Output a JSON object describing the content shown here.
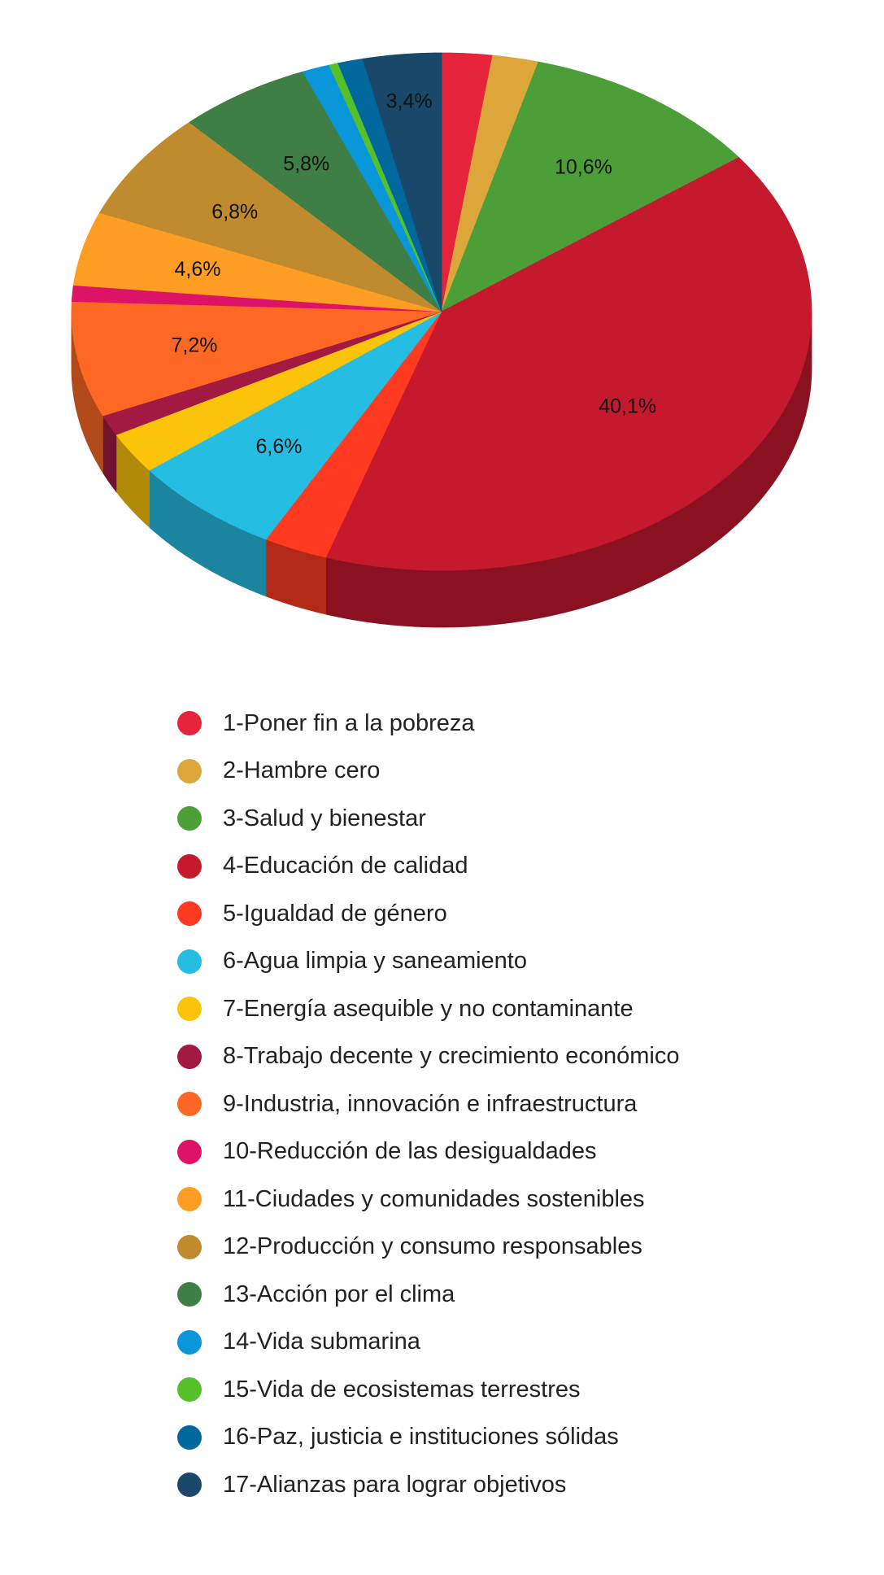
{
  "chart_data": {
    "type": "pie",
    "title": "",
    "legend_position": "bottom",
    "start_angle_deg": 0,
    "direction": "clockwise",
    "style": "3d",
    "slices": [
      {
        "label": "1-Poner fin a la pobreza",
        "value": 2.2,
        "color": "#E5243B",
        "side": "#A0192A",
        "data_label": ""
      },
      {
        "label": "2-Hambre cero",
        "value": 2.0,
        "color": "#DDA63A",
        "side": "#9B7428",
        "data_label": ""
      },
      {
        "label": "3-Salud y bienestar",
        "value": 10.6,
        "color": "#4C9F38",
        "side": "#356F27",
        "data_label": "10,6%"
      },
      {
        "label": "4-Educación de calidad",
        "value": 40.1,
        "color": "#C5192D",
        "side": "#8A1220",
        "data_label": "40,1%"
      },
      {
        "label": "5-Igualdad de género",
        "value": 2.8,
        "color": "#FF3A21",
        "side": "#B32917",
        "data_label": ""
      },
      {
        "label": "6-Agua limpia y saneamiento",
        "value": 6.6,
        "color": "#26BDE2",
        "side": "#1B849E",
        "data_label": "6,6%"
      },
      {
        "label": "7-Energía asequible y no contaminante",
        "value": 2.6,
        "color": "#FCC30B",
        "side": "#B08908",
        "data_label": ""
      },
      {
        "label": "8-Trabajo decente y crecimiento económico",
        "value": 1.3,
        "color": "#A21942",
        "side": "#71122E",
        "data_label": ""
      },
      {
        "label": "9-Industria, innovación e infraestructura",
        "value": 7.2,
        "color": "#FD6925",
        "side": "#B14A1A",
        "data_label": "7,2%"
      },
      {
        "label": "10-Reducción de las desigualdades",
        "value": 1.0,
        "color": "#DD1367",
        "side": "#9B0D48",
        "data_label": ""
      },
      {
        "label": "11-Ciudades y comunidades sostenibles",
        "value": 4.6,
        "color": "#FD9D24",
        "side": "#B16E19",
        "data_label": "4,6%"
      },
      {
        "label": "12-Producción y consumo responsables",
        "value": 6.8,
        "color": "#BF8B2E",
        "side": "#866120",
        "data_label": "6,8%"
      },
      {
        "label": "13-Acción por el clima",
        "value": 5.8,
        "color": "#3F7E44",
        "side": "#2C5830",
        "data_label": "5,8%"
      },
      {
        "label": "14-Vida submarina",
        "value": 1.2,
        "color": "#0A97D9",
        "side": "#076A98",
        "data_label": ""
      },
      {
        "label": "15-Vida de ecosistemas terrestres",
        "value": 0.4,
        "color": "#56C02B",
        "side": "#3C861E",
        "data_label": ""
      },
      {
        "label": "16-Paz, justicia e instituciones sólidas",
        "value": 1.1,
        "color": "#00689D",
        "side": "#00496E",
        "data_label": ""
      },
      {
        "label": "17-Alianzas para lograr objetivos",
        "value": 3.4,
        "color": "#19486A",
        "side": "#12324A",
        "data_label": "3,4%"
      }
    ]
  }
}
